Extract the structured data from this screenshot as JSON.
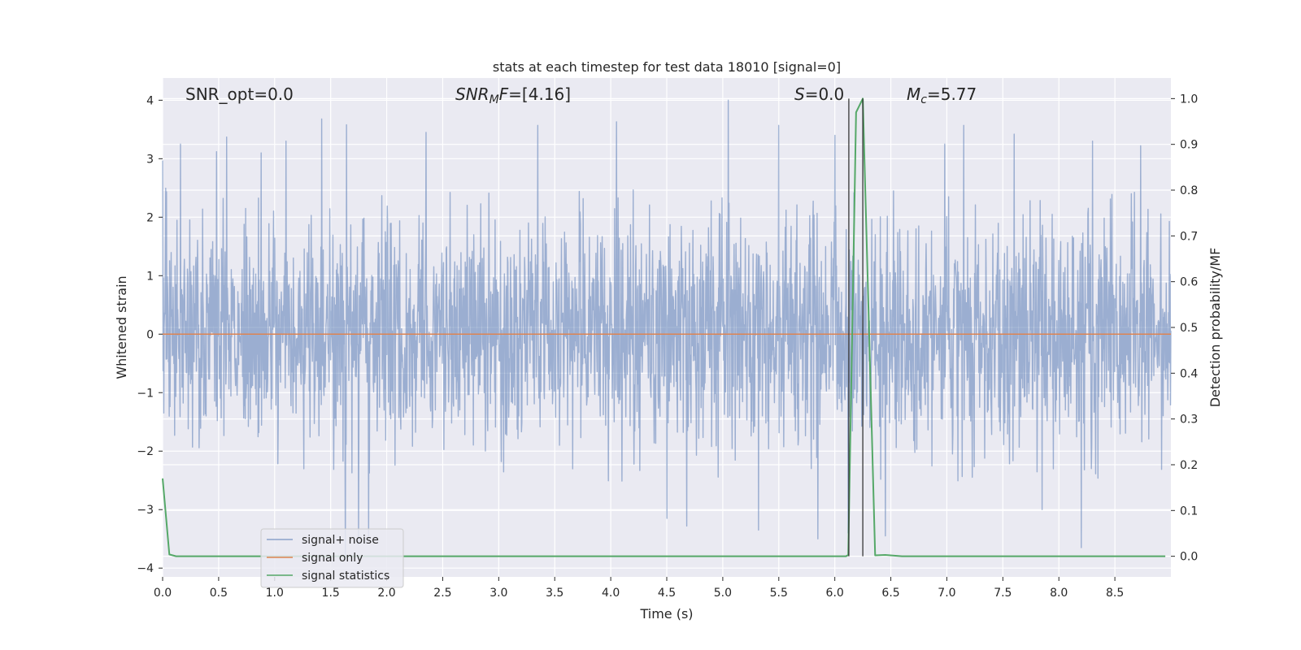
{
  "chart_data": {
    "type": "line",
    "title": "stats at each timestep for test data 18010 [signal=0]",
    "xlabel": "Time (s)",
    "ylabel_left": "Whitened strain",
    "ylabel_right": "Detection probability/MF",
    "xlim": [
      0.0,
      9.0
    ],
    "ylim_left": [
      -4.15,
      4.38
    ],
    "ylim_right": [
      -0.045,
      1.045
    ],
    "x_ticks": [
      0.0,
      0.5,
      1.0,
      1.5,
      2.0,
      2.5,
      3.0,
      3.5,
      4.0,
      4.5,
      5.0,
      5.5,
      6.0,
      6.5,
      7.0,
      7.5,
      8.0,
      8.5
    ],
    "x_tick_labels": [
      "0.0",
      "0.5",
      "1.0",
      "1.5",
      "2.0",
      "2.5",
      "3.0",
      "3.5",
      "4.0",
      "4.5",
      "5.0",
      "5.5",
      "6.0",
      "6.5",
      "7.0",
      "7.5",
      "8.0",
      "8.5"
    ],
    "y_ticks_left": [
      4,
      3,
      2,
      1,
      0,
      -1,
      -2,
      -3,
      -4
    ],
    "y_tick_labels_left": [
      "4",
      "3",
      "2",
      "1",
      "0",
      "−1",
      "−2",
      "−3",
      "−4"
    ],
    "y_ticks_right": [
      1.0,
      0.9,
      0.8,
      0.7,
      0.6,
      0.5,
      0.4,
      0.3,
      0.2,
      0.1,
      0.0
    ],
    "y_tick_labels_right": [
      "1.0",
      "0.9",
      "0.8",
      "0.7",
      "0.6",
      "0.5",
      "0.4",
      "0.3",
      "0.2",
      "0.1",
      "0.0"
    ],
    "grid": true,
    "legend_position": "lower-left",
    "annotations": {
      "snr_opt": "SNR_opt=0.0",
      "snr_mf_sym": "SNR",
      "snr_mf_sub": "M",
      "snr_mf_rest": "F",
      "snr_mf_value": "=[4.16]",
      "s_sym": "S",
      "s_value": "=0.0",
      "mc_sym": "M",
      "mc_sub": "c",
      "mc_value": "=5.77"
    },
    "vertical_lines_x": [
      6.125,
      6.25
    ],
    "series": [
      {
        "name": "signal+ noise",
        "color": "#4c72b0",
        "kind": "noise",
        "amplitude_std": 0.95,
        "peaks": [
          {
            "x": 0.0,
            "y": 2.97
          },
          {
            "x": 0.16,
            "y": 3.25
          },
          {
            "x": 0.48,
            "y": 3.12
          },
          {
            "x": 0.57,
            "y": 3.37
          },
          {
            "x": 0.88,
            "y": 3.1
          },
          {
            "x": 1.1,
            "y": 3.3
          },
          {
            "x": 1.42,
            "y": 3.68
          },
          {
            "x": 1.64,
            "y": 3.58
          },
          {
            "x": 2.35,
            "y": 3.45
          },
          {
            "x": 3.35,
            "y": 3.57
          },
          {
            "x": 4.05,
            "y": 3.63
          },
          {
            "x": 5.05,
            "y": 4.0
          },
          {
            "x": 5.5,
            "y": 3.57
          },
          {
            "x": 6.0,
            "y": 3.4
          },
          {
            "x": 6.98,
            "y": 3.25
          },
          {
            "x": 7.15,
            "y": 3.57
          },
          {
            "x": 7.6,
            "y": 3.42
          },
          {
            "x": 8.3,
            "y": 3.3
          },
          {
            "x": 8.73,
            "y": 3.22
          }
        ],
        "troughs": [
          {
            "x": 1.63,
            "y": -3.85
          },
          {
            "x": 1.75,
            "y": -3.6
          },
          {
            "x": 1.84,
            "y": -3.45
          },
          {
            "x": 4.5,
            "y": -3.15
          },
          {
            "x": 4.68,
            "y": -3.28
          },
          {
            "x": 5.32,
            "y": -3.35
          },
          {
            "x": 5.85,
            "y": -3.5
          },
          {
            "x": 6.12,
            "y": -3.4
          },
          {
            "x": 6.45,
            "y": -3.45
          },
          {
            "x": 8.2,
            "y": -3.65
          },
          {
            "x": 7.85,
            "y": -3.0
          }
        ]
      },
      {
        "name": "signal only",
        "color": "#dd8452",
        "kind": "flat",
        "y": 0.0
      },
      {
        "name": "signal statistics",
        "color": "#55a868",
        "kind": "line",
        "axis": "right",
        "points": [
          [
            0.0,
            0.17
          ],
          [
            0.06,
            0.004
          ],
          [
            0.12,
            0.0
          ],
          [
            6.1,
            0.0
          ],
          [
            6.12,
            0.003
          ],
          [
            6.19,
            0.97
          ],
          [
            6.25,
            1.0
          ],
          [
            6.36,
            0.002
          ],
          [
            6.45,
            0.003
          ],
          [
            6.6,
            0.0
          ],
          [
            8.95,
            0.0
          ]
        ]
      }
    ]
  }
}
